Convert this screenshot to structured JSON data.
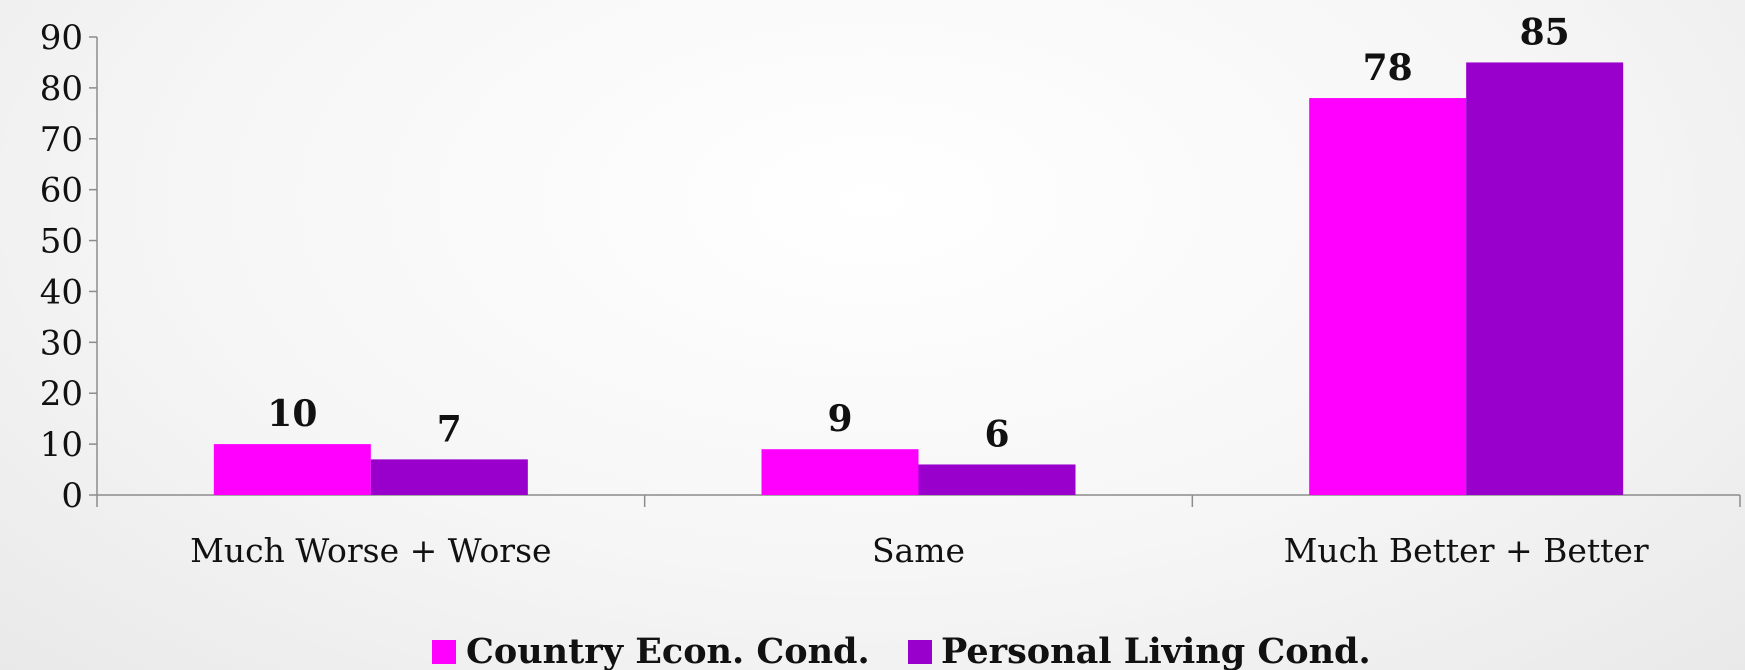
{
  "chart_data": {
    "type": "bar",
    "categories": [
      "Much Worse + Worse",
      "Same",
      "Much Better + Better"
    ],
    "series": [
      {
        "name": "Country Econ. Cond.",
        "color": "#ff00ff",
        "values": [
          10,
          9,
          78
        ]
      },
      {
        "name": "Personal Living Cond.",
        "color": "#9900cc",
        "values": [
          7,
          6,
          85
        ]
      }
    ],
    "title": "",
    "xlabel": "",
    "ylabel": "",
    "ylim": [
      0,
      90
    ],
    "yticks": [
      0,
      10,
      20,
      30,
      40,
      50,
      60,
      70,
      80,
      90
    ],
    "grid": false,
    "legend_position": "bottom",
    "data_labels": true
  }
}
